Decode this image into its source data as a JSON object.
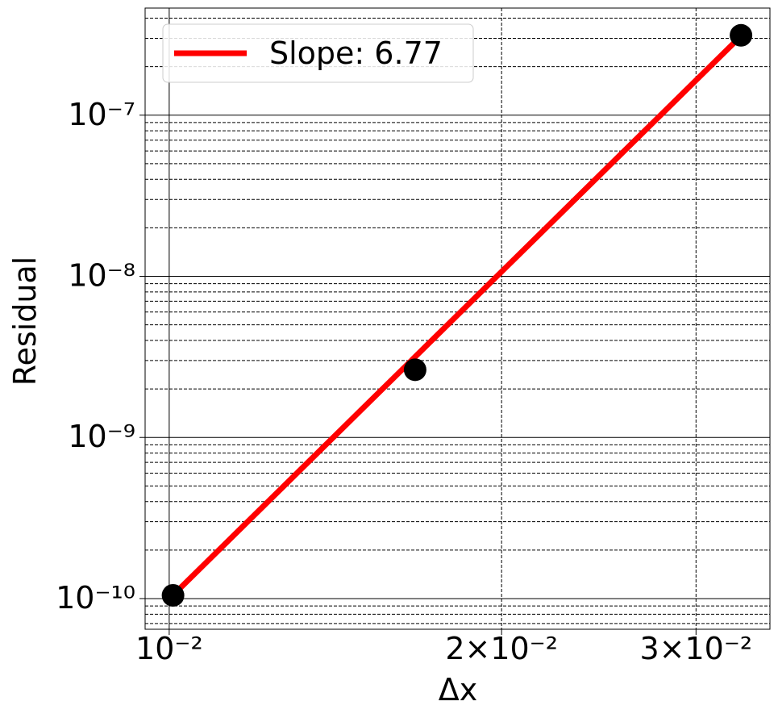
{
  "chart_data": {
    "type": "scatter",
    "xlabel": "Δx",
    "ylabel": "Residual",
    "xscale": "log",
    "yscale": "log",
    "grid": true,
    "xlim": [
      0.00951,
      0.035
    ],
    "ylim": [
      6.45e-11,
      4.62e-07
    ],
    "xticks": [
      {
        "value": 0.01,
        "label": "10⁻²"
      },
      {
        "value": 0.02,
        "label": "2×10⁻²"
      },
      {
        "value": 0.03,
        "label": "3×10⁻²"
      }
    ],
    "yticks": [
      {
        "value": 1e-10,
        "label": "10⁻¹⁰"
      },
      {
        "value": 1e-09,
        "label": "10⁻⁹"
      },
      {
        "value": 1e-08,
        "label": "10⁻⁸"
      },
      {
        "value": 1e-07,
        "label": "10⁻⁷"
      }
    ],
    "yminorticks": [
      7e-11,
      8e-11,
      9e-11,
      2e-10,
      3e-10,
      4e-10,
      5e-10,
      6e-10,
      7e-10,
      8e-10,
      9e-10,
      2e-09,
      3e-09,
      4e-09,
      5e-09,
      6e-09,
      7e-09,
      8e-09,
      9e-09,
      2e-08,
      3e-08,
      4e-08,
      5e-08,
      6e-08,
      7e-08,
      8e-08,
      9e-08,
      2e-07,
      3e-07,
      4e-07
    ],
    "points": {
      "color": "#000000",
      "x": [
        0.01008,
        0.0167,
        0.03295
      ],
      "values": [
        1.047e-10,
        2.63e-09,
        3.13e-07
      ]
    },
    "fit": {
      "name": "Slope: 6.77",
      "color": "#ff0000",
      "x": [
        0.01008,
        0.03295
      ],
      "values": [
        1.05e-10,
        3.1e-07
      ]
    },
    "legend": "upper left"
  }
}
